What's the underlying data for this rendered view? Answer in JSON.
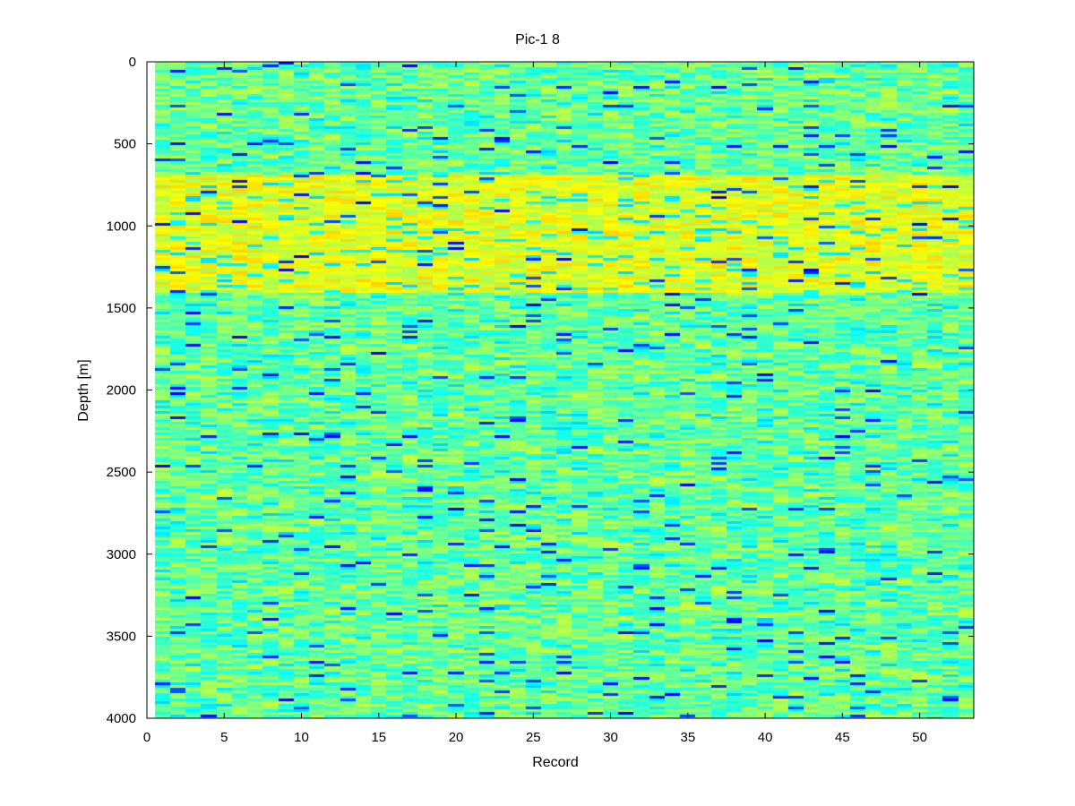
{
  "chart_data": {
    "type": "heatmap",
    "title": "Pic-1 8",
    "xlabel": "Record",
    "ylabel": "Depth [m]",
    "xlim": [
      0,
      53.5
    ],
    "ylim": [
      4000,
      0
    ],
    "x_ticks": [
      "0",
      "5",
      "10",
      "15",
      "20",
      "25",
      "30",
      "35",
      "40",
      "45",
      "50"
    ],
    "y_ticks": [
      "0",
      "500",
      "1000",
      "1500",
      "2000",
      "2500",
      "3000",
      "3500",
      "4000"
    ],
    "y_axis_reversed": true,
    "grid": false,
    "colormap": "jet",
    "records": {
      "first": 1,
      "last": 53
    },
    "depth_range_m": [
      0,
      4000
    ],
    "high_intensity_band_m": [
      680,
      1400
    ],
    "colors": {
      "background_noise": "#5fe890",
      "band": "#e0f43a",
      "speckle_low": "#1020d0",
      "speckle_mid": "#00f0f0"
    }
  }
}
